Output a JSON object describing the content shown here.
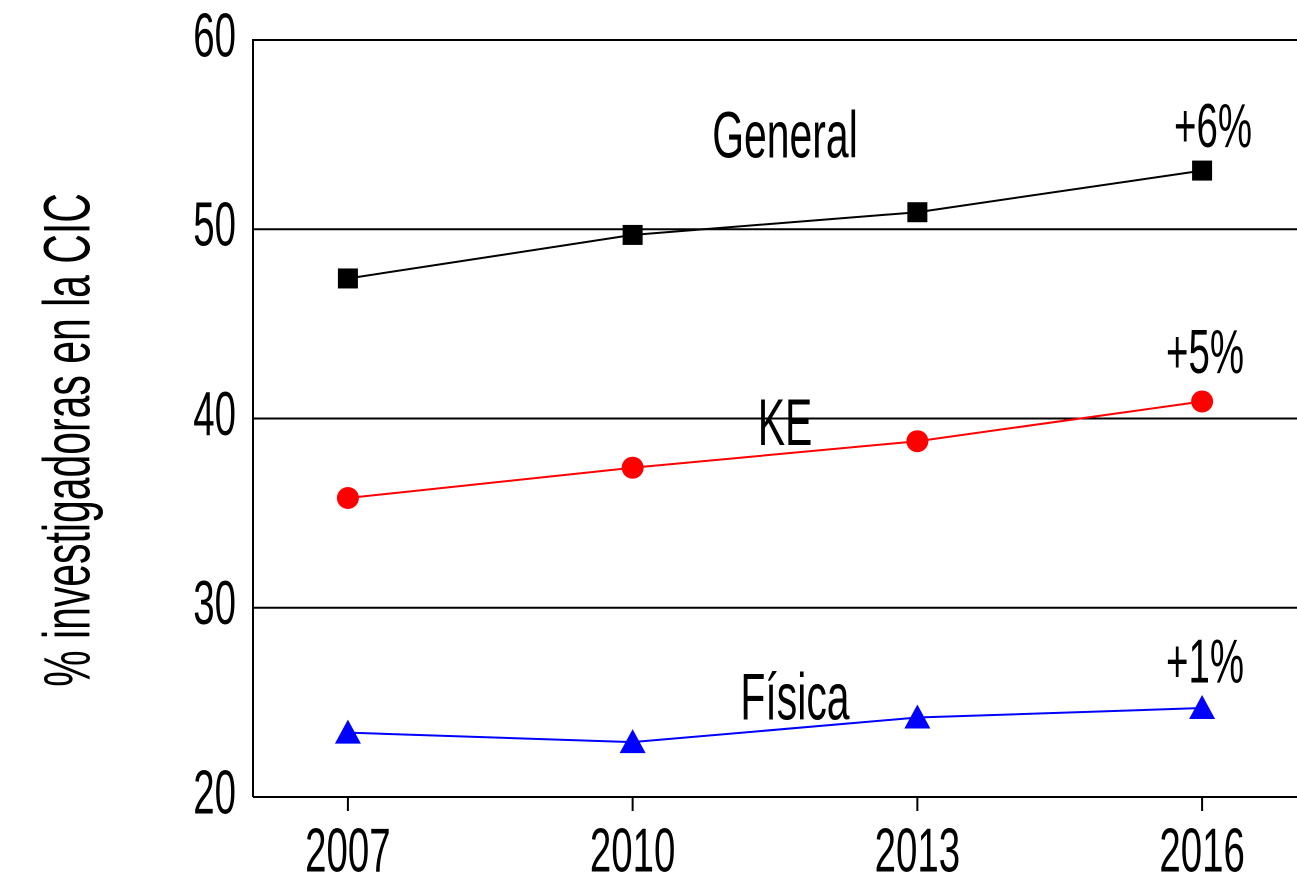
{
  "chart_data": {
    "type": "line",
    "ylabel": "% investigadoras en la CIC",
    "x": [
      2007,
      2010,
      2013,
      2016
    ],
    "xlim": [
      2006,
      2017
    ],
    "xticks": [
      2007,
      2010,
      2013,
      2016
    ],
    "ylim": [
      20,
      60
    ],
    "yticks": [
      20,
      30,
      40,
      50,
      60
    ],
    "grid": true,
    "series": [
      {
        "name": "General",
        "color": "#000000",
        "marker": "square",
        "values": [
          47.4,
          49.7,
          50.9,
          53.1
        ]
      },
      {
        "name": "KE",
        "color": "#ff0000",
        "marker": "circle",
        "values": [
          35.8,
          37.4,
          38.8,
          40.9
        ]
      },
      {
        "name": "Física",
        "color": "#0000ff",
        "marker": "triangle",
        "values": [
          23.4,
          22.9,
          24.2,
          24.7
        ]
      }
    ],
    "annotations": [
      "+6%",
      "+5%",
      "+1%"
    ]
  }
}
